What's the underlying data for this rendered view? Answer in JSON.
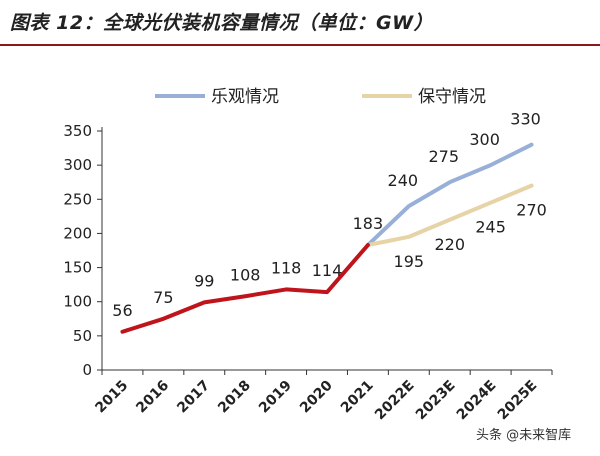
{
  "title": "图表 12：全球光伏装机容量情况（单位：GW）",
  "watermark": "头条 @未来智库",
  "chart_data": {
    "type": "line",
    "title": "图表 12：全球光伏装机容量情况（单位：GW）",
    "categories": [
      "2015",
      "2016",
      "2017",
      "2018",
      "2019",
      "2020",
      "2021",
      "2022E",
      "2023E",
      "2024E",
      "2025E"
    ],
    "historical": {
      "values": [
        56,
        75,
        99,
        108,
        118,
        114,
        183
      ],
      "color": "#c0141c"
    },
    "series": [
      {
        "name": "乐观情况",
        "values": [
          null,
          null,
          null,
          null,
          null,
          null,
          183,
          240,
          275,
          300,
          330
        ],
        "color": "#98b0d8"
      },
      {
        "name": "保守情况",
        "values": [
          null,
          null,
          null,
          null,
          null,
          null,
          183,
          195,
          220,
          245,
          270
        ],
        "color": "#e6d3a6"
      }
    ],
    "ylim": [
      0,
      350
    ],
    "yticks": [
      0,
      50,
      100,
      150,
      200,
      250,
      300,
      350
    ],
    "legend": "top",
    "grid": false
  }
}
